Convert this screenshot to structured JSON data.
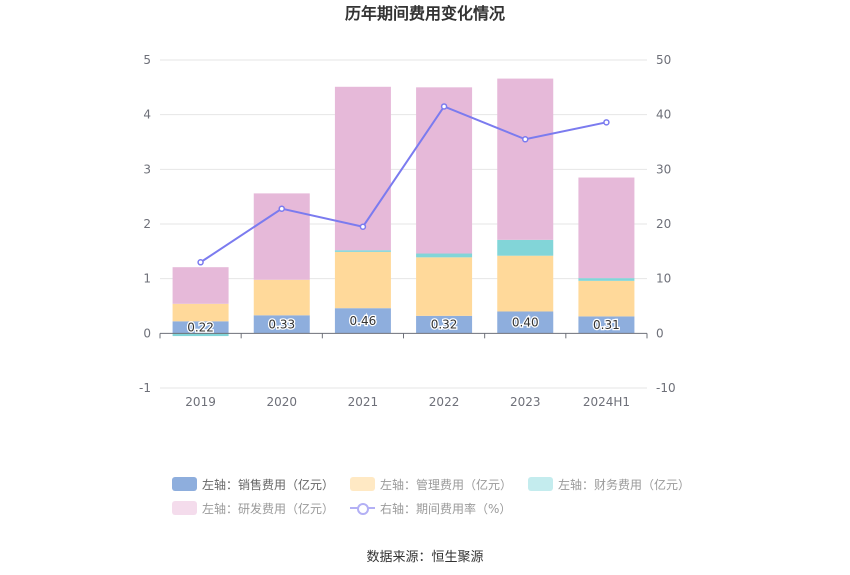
{
  "chart_data": {
    "type": "bar",
    "title": "历年期间费用变化情况",
    "categories": [
      "2019",
      "2020",
      "2021",
      "2022",
      "2023",
      "2024H1"
    ],
    "stacked": true,
    "left_axis": {
      "min": -1,
      "max": 5,
      "ticks": [
        "-1",
        "0",
        "1",
        "2",
        "3",
        "4",
        "5"
      ]
    },
    "right_axis": {
      "min": -10,
      "max": 50,
      "ticks": [
        "-10",
        "0",
        "10",
        "20",
        "30",
        "40",
        "50"
      ]
    },
    "series": [
      {
        "name": "左轴：销售费用（亿元）",
        "axis": "left",
        "color": "#8eaedd",
        "values": [
          0.22,
          0.33,
          0.46,
          0.32,
          0.4,
          0.31
        ],
        "labels": [
          "0.22",
          "0.33",
          "0.46",
          "0.32",
          "0.40",
          "0.31"
        ]
      },
      {
        "name": "左轴：管理费用（亿元）",
        "axis": "left",
        "color": "#ffd99a",
        "values": [
          0.32,
          0.65,
          1.03,
          1.07,
          1.02,
          0.65
        ]
      },
      {
        "name": "左轴：财务费用（亿元）",
        "axis": "left",
        "color": "#82d5d8",
        "values": [
          -0.05,
          0.0,
          0.03,
          0.07,
          0.29,
          0.05
        ]
      },
      {
        "name": "左轴：研发费用（亿元）",
        "axis": "left",
        "color": "#e6b9d9",
        "values": [
          0.67,
          1.58,
          2.99,
          3.04,
          2.95,
          1.84
        ]
      }
    ],
    "line": {
      "name": "右轴：期间费用率（%）",
      "axis": "right",
      "color": "#7b7bef",
      "values": [
        13.0,
        22.8,
        19.5,
        41.5,
        35.5,
        38.6
      ]
    },
    "source": "数据来源：恒生聚源"
  }
}
